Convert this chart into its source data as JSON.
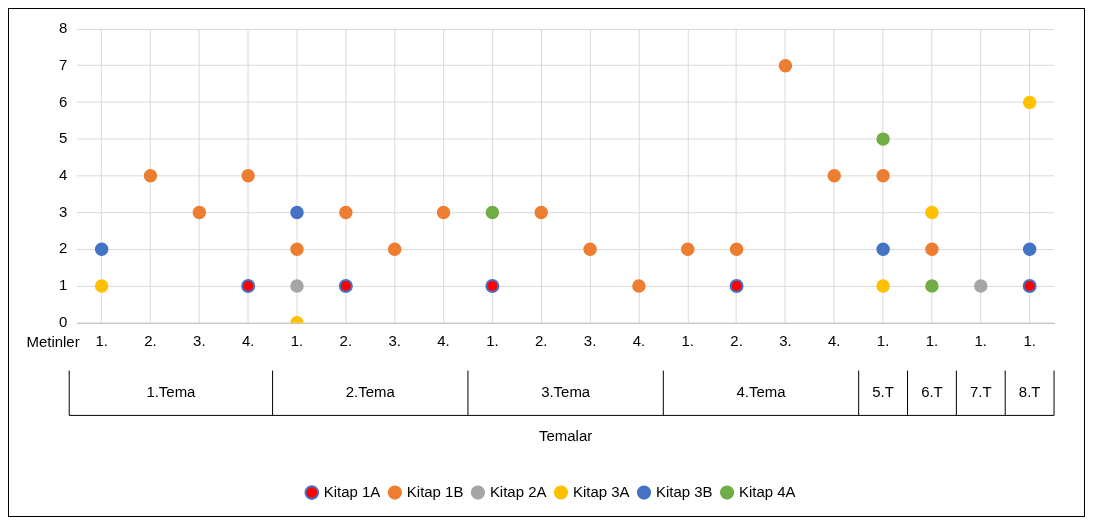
{
  "chart_data": {
    "type": "scatter",
    "categories": [
      "1.",
      "2.",
      "3.",
      "4.",
      "1.",
      "2.",
      "3.",
      "4.",
      "1.",
      "2.",
      "3.",
      "4.",
      "1.",
      "2.",
      "3.",
      "4.",
      "1.",
      "1.",
      "1.",
      "1."
    ],
    "series": [
      {
        "name": "Kitap 1A",
        "color": "#ff0000",
        "values": [
          null,
          null,
          null,
          1,
          null,
          1,
          null,
          null,
          1,
          null,
          null,
          null,
          null,
          1,
          null,
          null,
          null,
          null,
          null,
          1
        ]
      },
      {
        "name": "Kitap 1B",
        "color": "#ed7d31",
        "values": [
          null,
          4,
          3,
          4,
          2,
          3,
          2,
          3,
          null,
          3,
          2,
          1,
          2,
          2,
          7,
          4,
          4,
          2,
          null,
          null
        ]
      },
      {
        "name": "Kitap 2A",
        "color": "#a5a5a5",
        "values": [
          null,
          null,
          null,
          null,
          1,
          null,
          null,
          null,
          null,
          null,
          null,
          null,
          null,
          null,
          null,
          null,
          null,
          null,
          1,
          null
        ]
      },
      {
        "name": "Kitap 3A",
        "color": "#ffc000",
        "values": [
          1,
          null,
          null,
          null,
          0,
          null,
          null,
          null,
          null,
          null,
          null,
          null,
          null,
          null,
          null,
          null,
          1,
          3,
          null,
          6
        ]
      },
      {
        "name": "Kitap 3B",
        "color": "#4472c4",
        "values": [
          2,
          null,
          null,
          null,
          3,
          null,
          null,
          null,
          null,
          null,
          null,
          null,
          null,
          null,
          null,
          null,
          2,
          null,
          null,
          2
        ]
      },
      {
        "name": "Kitap 4A",
        "color": "#70ad47",
        "values": [
          null,
          null,
          null,
          null,
          null,
          null,
          null,
          null,
          3,
          null,
          null,
          null,
          null,
          null,
          null,
          null,
          5,
          1,
          null,
          null
        ]
      }
    ],
    "ylim": [
      0,
      8
    ],
    "yticks": [
      0,
      1,
      2,
      3,
      4,
      5,
      6,
      7,
      8
    ],
    "grid": true,
    "legend": "bottom",
    "marker": "circle",
    "annotations": [
      "Metinler",
      "1.Tema",
      "2.Tema",
      "3.Tema",
      "4.Tema",
      "5.T",
      "6.T",
      "7.T",
      "8.T",
      "Temalar"
    ]
  }
}
